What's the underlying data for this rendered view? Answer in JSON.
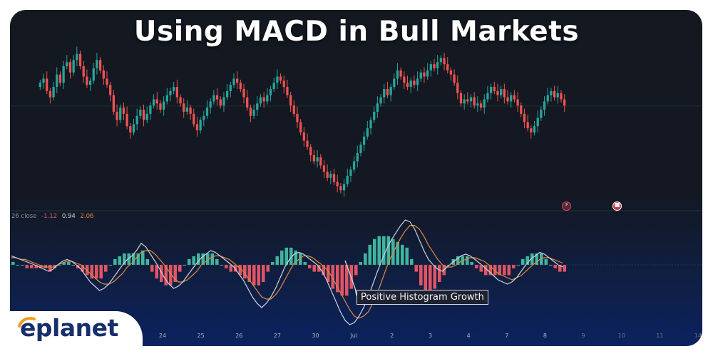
{
  "title": "Using MACD in Bull Markets",
  "brand": {
    "logo_text": "eplanet",
    "logo_color": "#17306b"
  },
  "indicator_legend": {
    "label": "26 close",
    "macd": "-1.12",
    "signal": "0.94",
    "histogram": "2.06"
  },
  "annotation": {
    "text": "Positive Histogram Growth"
  },
  "colors": {
    "up": "#26a69a",
    "down": "#ef5350",
    "macd_line": "#cfd3da",
    "signal_line": "#e08a3a",
    "hist_up": "#3fb59e",
    "hist_down": "#e05565"
  },
  "chart_data": [
    {
      "type": "candlestick",
      "title": "",
      "x_tick_labels": [
        "24",
        "25",
        "26",
        "27",
        "30",
        "Jul",
        "2",
        "3",
        "4",
        "7",
        "8",
        "9",
        "10",
        "11",
        "14"
      ],
      "close": [
        110,
        112,
        106,
        103,
        108,
        114,
        110,
        118,
        120,
        115,
        121,
        124,
        118,
        113,
        109,
        111,
        117,
        121,
        116,
        112,
        109,
        104,
        96,
        92,
        98,
        95,
        89,
        86,
        90,
        94,
        97,
        92,
        95,
        99,
        102,
        100,
        97,
        101,
        104,
        106,
        108,
        103,
        100,
        96,
        98,
        95,
        90,
        87,
        92,
        94,
        98,
        101,
        104,
        102,
        99,
        103,
        106,
        109,
        112,
        110,
        107,
        103,
        98,
        94,
        97,
        100,
        103,
        101,
        104,
        107,
        110,
        113,
        111,
        108,
        104,
        99,
        95,
        91,
        86,
        82,
        79,
        75,
        72,
        74,
        70,
        67,
        64,
        66,
        62,
        60,
        58,
        61,
        65,
        68,
        72,
        76,
        80,
        84,
        88,
        92,
        96,
        100,
        103,
        107,
        104,
        108,
        112,
        116,
        113,
        110,
        108,
        111,
        109,
        112,
        115,
        113,
        116,
        119,
        117,
        120,
        122,
        119,
        116,
        114,
        110,
        105,
        100,
        102,
        101,
        103,
        99,
        100,
        98,
        102,
        105,
        108,
        106,
        104,
        107,
        103,
        101,
        104,
        102,
        99,
        95,
        91,
        88,
        86,
        89,
        93,
        97,
        101,
        104,
        106,
        103,
        105,
        102,
        99
      ],
      "ylim": [
        55,
        128
      ]
    },
    {
      "type": "macd",
      "macd": [
        5,
        4,
        3,
        2,
        1,
        0,
        -1,
        -2,
        -3,
        -2,
        0,
        2,
        3,
        2,
        0,
        -2,
        -5,
        -8,
        -10,
        -12,
        -11,
        -9,
        -6,
        -3,
        0,
        3,
        5,
        8,
        12,
        10,
        6,
        2,
        -2,
        -6,
        -9,
        -11,
        -10,
        -8,
        -5,
        -2,
        1,
        4,
        6,
        8,
        7,
        5,
        3,
        1,
        -1,
        -4,
        -7,
        -11,
        -15,
        -18,
        -20,
        -18,
        -15,
        -11,
        -6,
        -1,
        3,
        6,
        7,
        6,
        4,
        2,
        0,
        -3,
        -7,
        -12,
        -17,
        -22,
        -26,
        -28,
        -27,
        -24,
        -20,
        -15,
        -9,
        -3,
        3,
        9,
        14,
        18,
        22,
        25,
        24,
        20,
        14,
        8,
        3,
        0,
        -2,
        -3,
        -1,
        1,
        3,
        5,
        6,
        5,
        3,
        1,
        -1,
        -3,
        -5,
        -7,
        -8,
        -9,
        -8,
        -6,
        -3,
        0,
        3,
        5,
        7,
        6,
        4,
        2,
        0,
        -1
      ],
      "signal": [
        4,
        4,
        3,
        3,
        2,
        1,
        0,
        -1,
        -1,
        -1,
        0,
        1,
        2,
        2,
        1,
        0,
        -2,
        -4,
        -6,
        -8,
        -9,
        -9,
        -8,
        -6,
        -4,
        -1,
        1,
        4,
        7,
        8,
        8,
        6,
        3,
        0,
        -3,
        -6,
        -8,
        -8,
        -7,
        -5,
        -3,
        0,
        2,
        4,
        5,
        5,
        4,
        3,
        1,
        -1,
        -3,
        -6,
        -9,
        -12,
        -15,
        -16,
        -16,
        -14,
        -11,
        -7,
        -3,
        1,
        3,
        5,
        5,
        4,
        2,
        0,
        -2,
        -5,
        -9,
        -13,
        -17,
        -21,
        -24,
        -25,
        -24,
        -22,
        -18,
        -13,
        -7,
        -1,
        5,
        10,
        15,
        19,
        22,
        22,
        20,
        16,
        11,
        7,
        3,
        0,
        -1,
        -1,
        0,
        2,
        3,
        4,
        4,
        3,
        2,
        0,
        -2,
        -4,
        -5,
        -6,
        -7,
        -6,
        -5,
        -3,
        -1,
        1,
        3,
        4,
        4,
        3,
        2,
        1
      ],
      "ylim": [
        -30,
        27
      ]
    }
  ]
}
